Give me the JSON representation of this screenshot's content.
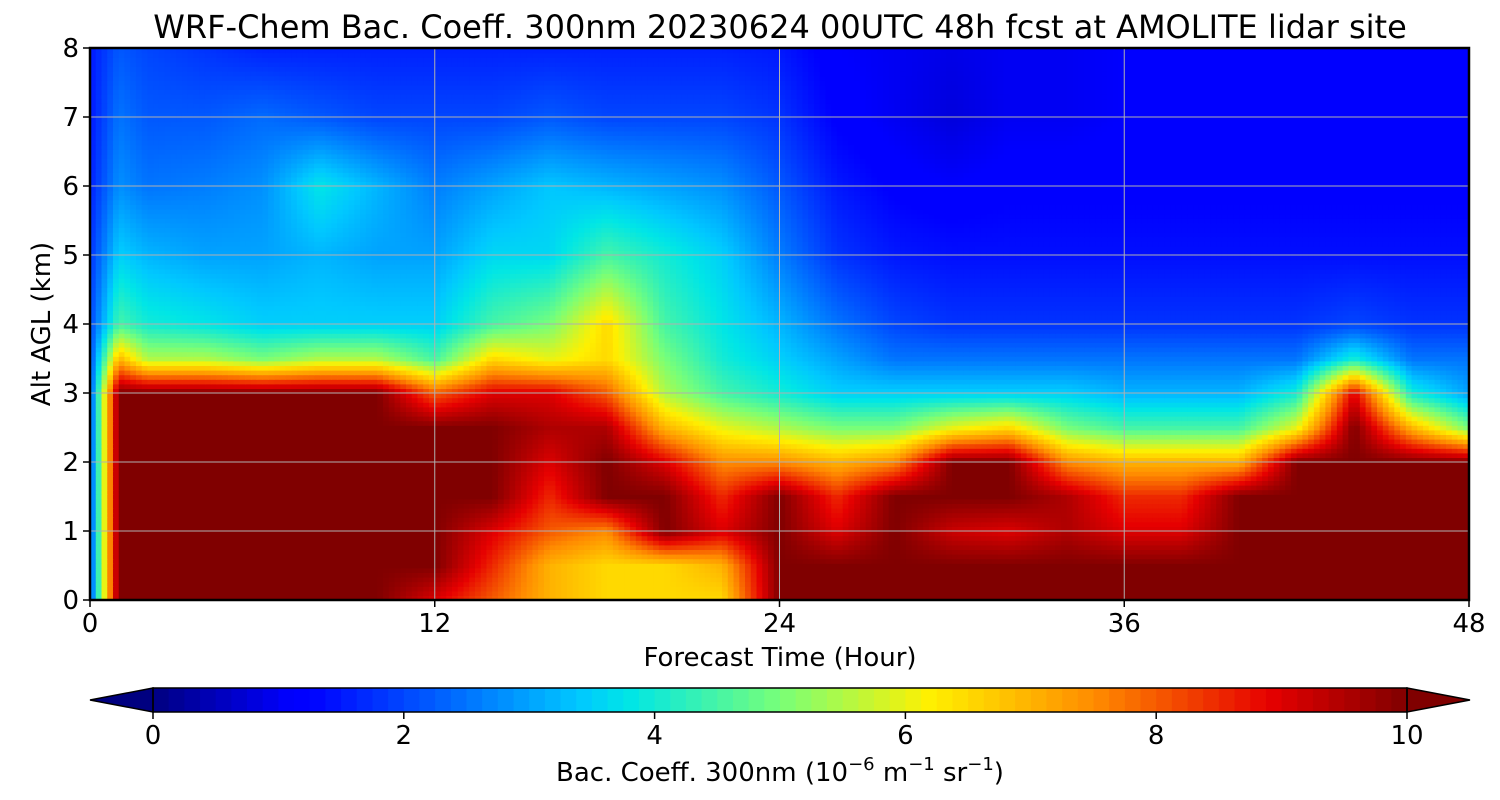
{
  "chart_data": {
    "type": "heatmap",
    "title": "WRF-Chem Bac. Coeff. 300nm  20230624 00UTC 48h fcst at AMOLITE lidar site",
    "xlabel": "Forecast Time (Hour)",
    "ylabel": "Alt AGL (km)",
    "xlim": [
      0,
      48
    ],
    "ylim": [
      0,
      8
    ],
    "xticks": [
      0,
      12,
      24,
      36,
      48
    ],
    "yticks": [
      0,
      1,
      2,
      3,
      4,
      5,
      6,
      7,
      8
    ],
    "grid": true,
    "colormap": "jet",
    "colorbar": {
      "label_prefix": "Bac. Coeff. 300nm  (10",
      "label_exp1": "−6",
      "label_mid1": " m",
      "label_exp2": "−1",
      "label_mid2": " sr",
      "label_exp3": "−1",
      "label_suffix": ")",
      "range": [
        0,
        10
      ],
      "ticks": [
        0,
        2,
        4,
        6,
        8,
        10
      ],
      "extend": "both",
      "orientation": "horizontal"
    },
    "hours": [
      0,
      1,
      2,
      4,
      6,
      8,
      10,
      12,
      14,
      16,
      18,
      20,
      22,
      24,
      26,
      28,
      30,
      32,
      34,
      36,
      38,
      40,
      42,
      44,
      46,
      48
    ],
    "altitudes_km": [
      0,
      0.5,
      1,
      1.5,
      2,
      2.5,
      3,
      3.5,
      4,
      5,
      6,
      7,
      8
    ],
    "values": [
      [
        2,
        10,
        10,
        10,
        10,
        10,
        10,
        9,
        8,
        7,
        6.5,
        6.5,
        6.5,
        10,
        10,
        10,
        10,
        10,
        10,
        10,
        10,
        10,
        10,
        10,
        10,
        10
      ],
      [
        2,
        10,
        10,
        10,
        10,
        10,
        10,
        10,
        8.5,
        7,
        6.5,
        6.5,
        7,
        10,
        10,
        10,
        10,
        10,
        10,
        10,
        10,
        10,
        10,
        10,
        10,
        10
      ],
      [
        2,
        10,
        10,
        10,
        10,
        10,
        10,
        10,
        9,
        8,
        7.5,
        10,
        9,
        10,
        9,
        10,
        9.2,
        9,
        9.5,
        9,
        9,
        10,
        10,
        10,
        10,
        10
      ],
      [
        2,
        10,
        10,
        10,
        10,
        10,
        10,
        10,
        10,
        8.5,
        10,
        10,
        8.5,
        10,
        8.5,
        10,
        10,
        10,
        9.5,
        8.5,
        8.5,
        10,
        10,
        10,
        10,
        10
      ],
      [
        2,
        10,
        10,
        10,
        10,
        10,
        10,
        10,
        10,
        9,
        10,
        9,
        7.5,
        7.5,
        7,
        7.5,
        10,
        10,
        7.5,
        7,
        7,
        7,
        10,
        10,
        10,
        10
      ],
      [
        2,
        10,
        10,
        10,
        10,
        10,
        10,
        10,
        10,
        9.5,
        9.5,
        7,
        6,
        5.5,
        5,
        5,
        6,
        6.5,
        5,
        4.5,
        4.5,
        4.5,
        6,
        10,
        7,
        5
      ],
      [
        2,
        10,
        10,
        10,
        10,
        10,
        10,
        8,
        9,
        9,
        8,
        5.5,
        4.5,
        4,
        3.5,
        3.5,
        3.5,
        3.5,
        3.5,
        3.2,
        3.2,
        3.2,
        4,
        9,
        4,
        3
      ],
      [
        2,
        7,
        5.5,
        5.5,
        5,
        5.5,
        5.5,
        4.5,
        6.5,
        6,
        6.5,
        5,
        4,
        3.5,
        3,
        2.5,
        2.5,
        2.5,
        2.5,
        2.5,
        2.5,
        2.5,
        2.5,
        4,
        2.5,
        2.5
      ],
      [
        2,
        4.5,
        4,
        3.8,
        3.5,
        3.5,
        3.5,
        3.5,
        4.5,
        5,
        6.5,
        4.5,
        3.8,
        3.2,
        2.5,
        2,
        1.8,
        1.8,
        1.8,
        1.8,
        1.8,
        1.8,
        1.8,
        2,
        1.8,
        1.8
      ],
      [
        1.8,
        3.5,
        3.2,
        3,
        3,
        3.2,
        3,
        3,
        3.6,
        3.6,
        4.5,
        4,
        3.5,
        2.6,
        1.8,
        1.5,
        1.4,
        1.4,
        1.4,
        1.4,
        1.4,
        1.4,
        1.4,
        1.4,
        1.4,
        1.4
      ],
      [
        1.6,
        2.8,
        2.5,
        2.6,
        2.8,
        3.8,
        3.2,
        2.6,
        3,
        3.4,
        3.2,
        3,
        2.8,
        2.2,
        1.5,
        1.2,
        1.1,
        1.2,
        1.2,
        1.2,
        1.2,
        1.2,
        1.2,
        1.2,
        1.2,
        1.2
      ],
      [
        1.5,
        2.5,
        2.2,
        2.2,
        2.4,
        2.2,
        2,
        2,
        2,
        2.2,
        2,
        2,
        2,
        1.8,
        1.2,
        1,
        0.8,
        1,
        1,
        1.1,
        1.1,
        1.1,
        1.1,
        1.1,
        1.1,
        1.1
      ],
      [
        1.5,
        2.2,
        2,
        1.8,
        1.6,
        1.6,
        1.6,
        1.6,
        1.6,
        1.6,
        1.6,
        1.6,
        1.6,
        1.5,
        1.1,
        1,
        0.9,
        1,
        1,
        1.1,
        1.1,
        1.1,
        1.1,
        1.1,
        1.1,
        1.1
      ]
    ]
  }
}
